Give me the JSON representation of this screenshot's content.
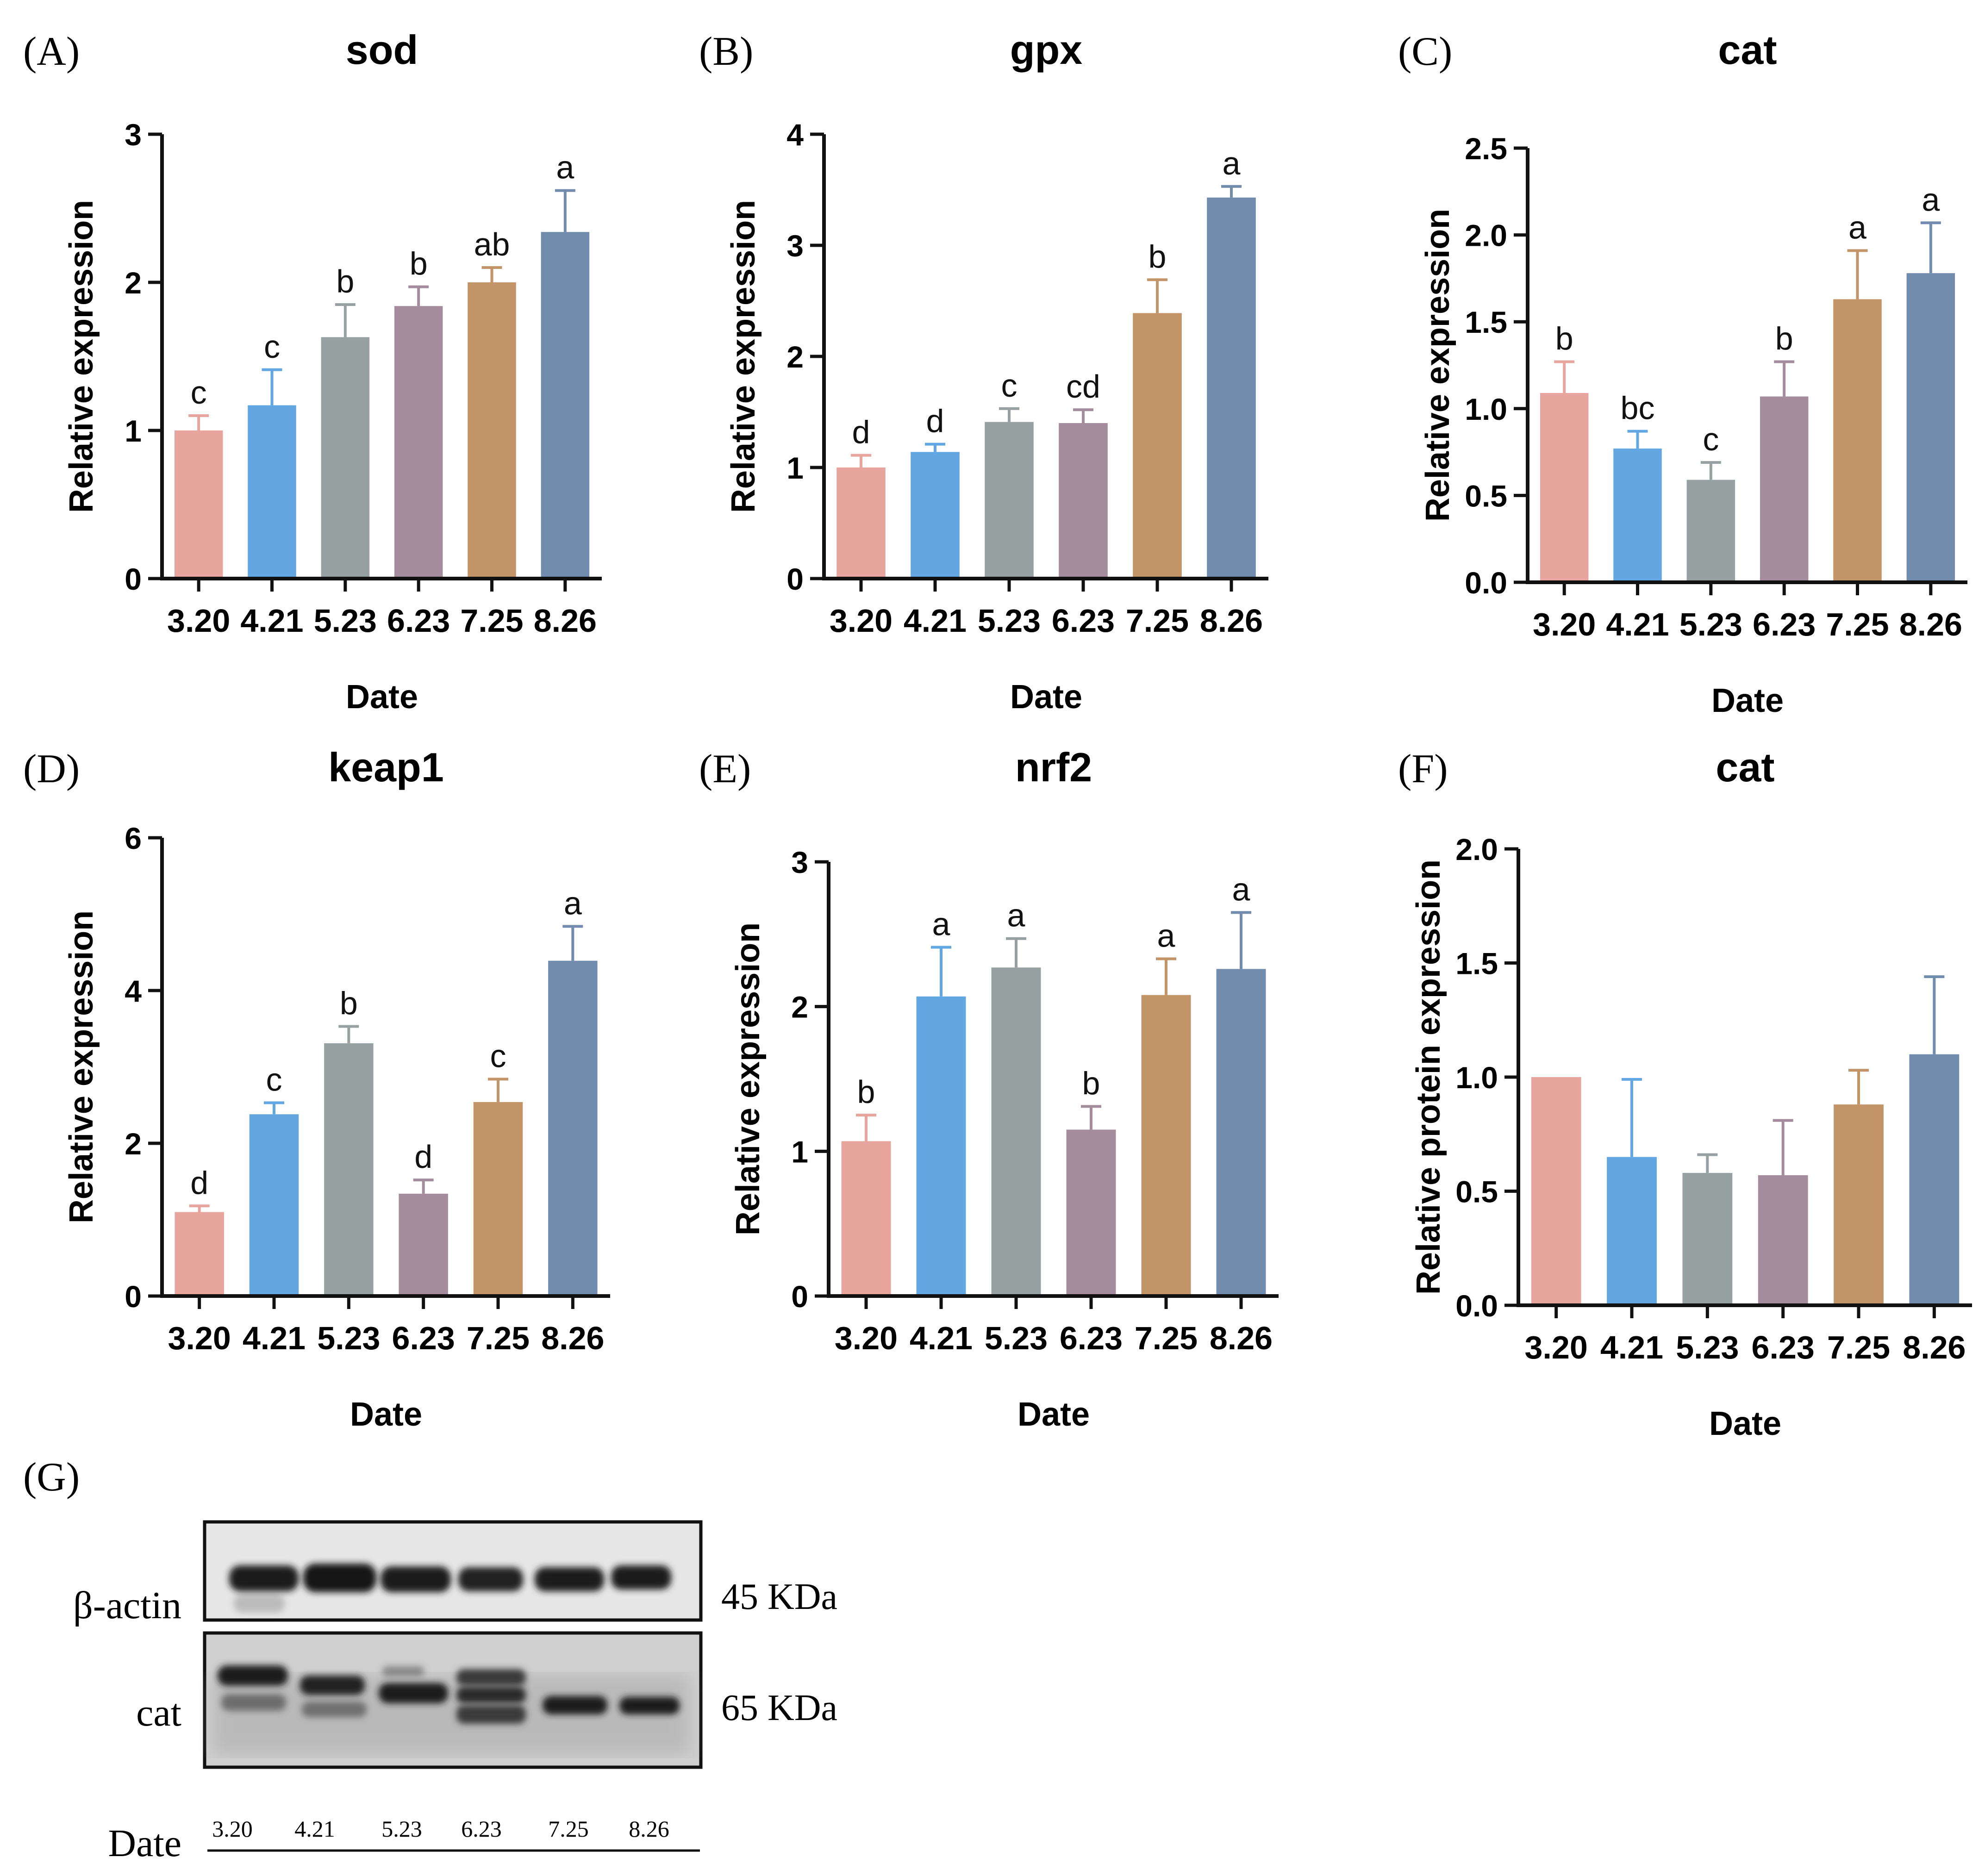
{
  "colors": [
    "#E8A59E",
    "#62A7E2",
    "#98A1A2",
    "#A48C9C",
    "#C39468",
    "#728CAD"
  ],
  "chart_data": [
    {
      "panel": "(A)",
      "type": "bar",
      "title": "sod",
      "xlabel": "Date",
      "ylabel": "Relative expression",
      "categories": [
        "3.20",
        "4.21",
        "5.23",
        "6.23",
        "7.25",
        "8.26"
      ],
      "values": [
        1.0,
        1.17,
        1.63,
        1.84,
        2.0,
        2.34
      ],
      "errors": [
        0.1,
        0.24,
        0.22,
        0.13,
        0.1,
        0.28
      ],
      "letters": [
        "c",
        "c",
        "b",
        "b",
        "ab",
        "a"
      ],
      "ylim": [
        0,
        3
      ],
      "yticks": [
        "0",
        "1",
        "2",
        "3"
      ]
    },
    {
      "panel": "(B)",
      "type": "bar",
      "title": "gpx",
      "xlabel": "Date",
      "ylabel": "Relative expression",
      "categories": [
        "3.20",
        "4.21",
        "5.23",
        "6.23",
        "7.25",
        "8.26"
      ],
      "values": [
        1.0,
        1.14,
        1.41,
        1.4,
        2.39,
        3.43
      ],
      "errors": [
        0.11,
        0.07,
        0.12,
        0.12,
        0.3,
        0.1
      ],
      "letters": [
        "d",
        "d",
        "c",
        "cd",
        "b",
        "a"
      ],
      "ylim": [
        0,
        4
      ],
      "yticks": [
        "0",
        "1",
        "2",
        "3",
        "4"
      ]
    },
    {
      "panel": "(C)",
      "type": "bar",
      "title": "cat",
      "xlabel": "Date",
      "ylabel": "Relative expression",
      "categories": [
        "3.20",
        "4.21",
        "5.23",
        "6.23",
        "7.25",
        "8.26"
      ],
      "values": [
        1.09,
        0.77,
        0.59,
        1.07,
        1.63,
        1.78
      ],
      "errors": [
        0.18,
        0.1,
        0.1,
        0.2,
        0.28,
        0.29
      ],
      "letters": [
        "b",
        "bc",
        "c",
        "b",
        "a",
        "a"
      ],
      "ylim": [
        0,
        2.5
      ],
      "yticks": [
        "0.0",
        "0.5",
        "1.0",
        "1.5",
        "2.0",
        "2.5"
      ]
    },
    {
      "panel": "(D)",
      "type": "bar",
      "title": "keap1",
      "xlabel": "Date",
      "ylabel": "Relative expression",
      "categories": [
        "3.20",
        "4.21",
        "5.23",
        "6.23",
        "7.25",
        "8.26"
      ],
      "values": [
        1.1,
        2.38,
        3.31,
        1.34,
        2.54,
        4.39
      ],
      "errors": [
        0.08,
        0.15,
        0.22,
        0.18,
        0.3,
        0.45
      ],
      "letters": [
        "d",
        "c",
        "b",
        "d",
        "c",
        "a"
      ],
      "ylim": [
        0,
        6
      ],
      "yticks": [
        "0",
        "2",
        "4",
        "6"
      ]
    },
    {
      "panel": "(E)",
      "type": "bar",
      "title": "nrf2",
      "xlabel": "Date",
      "ylabel": "Relative expression",
      "categories": [
        "3.20",
        "4.21",
        "5.23",
        "6.23",
        "7.25",
        "8.26"
      ],
      "values": [
        1.07,
        2.07,
        2.27,
        1.15,
        2.08,
        2.26
      ],
      "errors": [
        0.18,
        0.34,
        0.2,
        0.16,
        0.25,
        0.39
      ],
      "letters": [
        "b",
        "a",
        "a",
        "b",
        "a",
        "a"
      ],
      "ylim": [
        0,
        3
      ],
      "yticks": [
        "0",
        "1",
        "2",
        "3"
      ]
    },
    {
      "panel": "(F)",
      "type": "bar",
      "title": "cat",
      "xlabel": "Date",
      "ylabel": "Relative protein expression",
      "categories": [
        "3.20",
        "4.21",
        "5.23",
        "6.23",
        "7.25",
        "8.26"
      ],
      "values": [
        1.0,
        0.65,
        0.58,
        0.57,
        0.88,
        1.1
      ],
      "errors": [
        0.0,
        0.34,
        0.08,
        0.24,
        0.15,
        0.34
      ],
      "letters": [
        "",
        "",
        "",
        "",
        "",
        ""
      ],
      "ylim": [
        0,
        2.0
      ],
      "yticks": [
        "0.0",
        "0.5",
        "1.0",
        "1.5",
        "2.0"
      ]
    }
  ],
  "western_blot": {
    "panel": "(G)",
    "rows": [
      {
        "label": "β-actin",
        "size": "45 KDa"
      },
      {
        "label": "cat",
        "size": "65 KDa"
      }
    ],
    "date_label": "Date",
    "lanes": [
      "3.20",
      "4.21",
      "5.23",
      "6.23",
      "7.25",
      "8.26"
    ]
  }
}
